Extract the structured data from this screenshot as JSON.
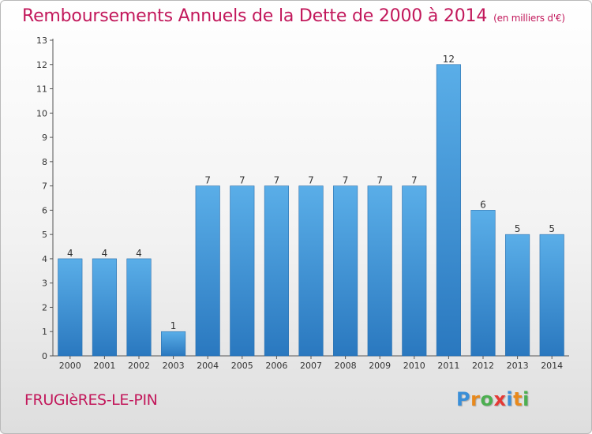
{
  "title": "Remboursements Annuels de la Dette de 2000 à 2014",
  "subtitle": "(en milliers d'€)",
  "commune": "FRUGIèRES-LE-PIN",
  "logo": {
    "letters": [
      "P",
      "r",
      "o",
      "x",
      "i",
      "t",
      "i"
    ],
    "colors": [
      "#3a8fd8",
      "#e8891c",
      "#4caf50",
      "#e53935",
      "#3a8fd8",
      "#e8891c",
      "#4caf50"
    ]
  },
  "colors": {
    "bar_top": "#5aaee8",
    "bar_bottom": "#2a78bf",
    "title": "#c2185b"
  },
  "chart_data": {
    "type": "bar",
    "title": "Remboursements Annuels de la Dette de 2000 à 2014",
    "xlabel": "",
    "ylabel": "(en milliers d'€)",
    "categories": [
      "2000",
      "2001",
      "2002",
      "2003",
      "2004",
      "2005",
      "2006",
      "2007",
      "2008",
      "2009",
      "2010",
      "2011",
      "2012",
      "2013",
      "2014"
    ],
    "values": [
      4,
      4,
      4,
      1,
      7,
      7,
      7,
      7,
      7,
      7,
      7,
      12,
      6,
      5,
      5
    ],
    "ylim": [
      0,
      13
    ],
    "yticks": [
      0,
      1,
      2,
      3,
      4,
      5,
      6,
      7,
      8,
      9,
      10,
      11,
      12,
      13
    ],
    "grid": false,
    "legend": "none"
  }
}
